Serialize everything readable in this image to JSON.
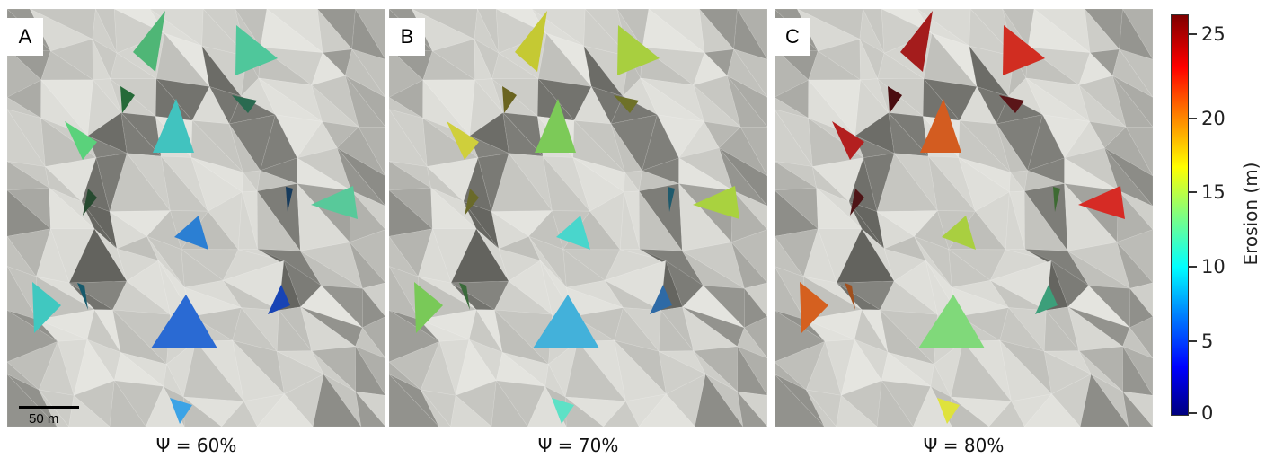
{
  "panels": [
    {
      "letter": "A",
      "caption": "Ψ = 60%"
    },
    {
      "letter": "B",
      "caption": "Ψ = 70%"
    },
    {
      "letter": "C",
      "caption": "Ψ = 80%"
    }
  ],
  "scale_bar": {
    "label": "50 m"
  },
  "colorbar": {
    "title": "Erosion (m)",
    "ticks": [
      "25",
      "20",
      "15",
      "10",
      "5",
      "0"
    ],
    "min": 0,
    "max": 26.5,
    "colormap": [
      "#00007f",
      "#0000ff",
      "#0080ff",
      "#00ffff",
      "#80ff80",
      "#ffff00",
      "#ff8000",
      "#ff0000",
      "#7f0000"
    ]
  },
  "colors": {
    "terrain_light": "#e3e1da",
    "terrain_mid": "#b7b6b2",
    "terrain_dark": "#5f5f60"
  }
}
